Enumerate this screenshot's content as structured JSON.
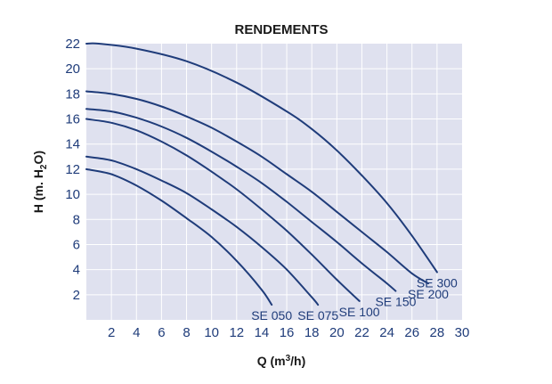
{
  "chart_data": {
    "type": "line",
    "title": "RENDEMENTS",
    "xlabel_main": "Q (m",
    "xlabel_sup": "3",
    "xlabel_end": "/h)",
    "ylabel_main": "H (m. H",
    "ylabel_sub": "2",
    "ylabel_end": "O)",
    "xlim": [
      0,
      30
    ],
    "ylim": [
      0,
      22
    ],
    "x_ticks": [
      2,
      4,
      6,
      8,
      10,
      12,
      14,
      16,
      18,
      20,
      22,
      24,
      26,
      28,
      30
    ],
    "y_ticks": [
      2,
      4,
      6,
      8,
      10,
      12,
      14,
      16,
      18,
      20,
      22
    ],
    "grid": true,
    "colors": {
      "plot_bg": "#dfe1ef",
      "grid": "#ffffff",
      "curve": "#1f3c7a"
    },
    "series": [
      {
        "name": "SE 050",
        "x": [
          0,
          2,
          4,
          6,
          8,
          10,
          12,
          14,
          14.8
        ],
        "y": [
          12,
          11.6,
          10.7,
          9.5,
          8.1,
          6.6,
          4.7,
          2.4,
          1.2
        ]
      },
      {
        "name": "SE 075",
        "x": [
          0,
          2,
          4,
          6,
          8,
          10,
          12,
          14,
          16,
          18,
          18.5
        ],
        "y": [
          13,
          12.7,
          12.0,
          11.1,
          10.1,
          8.8,
          7.4,
          5.8,
          4.0,
          1.8,
          1.2
        ]
      },
      {
        "name": "SE 100",
        "x": [
          0,
          2,
          4,
          6,
          8,
          10,
          12,
          14,
          16,
          18,
          20,
          21.8
        ],
        "y": [
          16,
          15.7,
          15.1,
          14.2,
          13.1,
          11.8,
          10.4,
          8.8,
          7.1,
          5.2,
          3.2,
          1.5
        ]
      },
      {
        "name": "SE 150",
        "x": [
          0,
          2,
          4,
          6,
          8,
          10,
          12,
          14,
          16,
          18,
          20,
          22,
          24,
          24.7
        ],
        "y": [
          16.8,
          16.6,
          16.1,
          15.4,
          14.5,
          13.4,
          12.2,
          10.9,
          9.4,
          7.8,
          6.2,
          4.5,
          2.9,
          2.3
        ]
      },
      {
        "name": "SE 200",
        "x": [
          0,
          2,
          4,
          6,
          8,
          10,
          12,
          14,
          16,
          18,
          20,
          22,
          24,
          26,
          27.3
        ],
        "y": [
          18.2,
          18.0,
          17.6,
          17.0,
          16.2,
          15.3,
          14.2,
          13.0,
          11.6,
          10.2,
          8.6,
          7.0,
          5.4,
          3.7,
          2.9
        ]
      },
      {
        "name": "SE 300",
        "x": [
          0,
          1,
          4,
          8,
          12,
          16,
          18,
          20,
          22,
          24,
          26,
          28
        ],
        "y": [
          22,
          22,
          21.6,
          20.6,
          18.9,
          16.6,
          15.2,
          13.5,
          11.5,
          9.3,
          6.7,
          3.8
        ]
      }
    ]
  }
}
